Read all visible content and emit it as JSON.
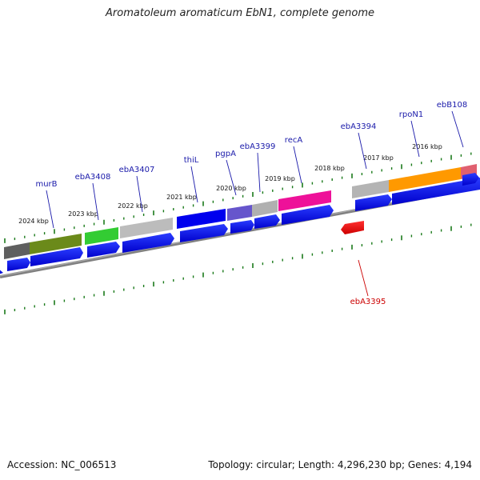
{
  "title": "Aromatoleum aromaticum EbN1, complete genome",
  "footer": {
    "accession": "Accession: NC_006513",
    "summary": "Topology: circular; Length: 4,296,230 bp; Genes: 4,194"
  },
  "kbp_labels": [
    "2024 kbp",
    "2023 kbp",
    "2022 kbp",
    "2021 kbp",
    "2020 kbp",
    "2019 kbp",
    "2018 kbp",
    "2017 kbp",
    "2016 kbp"
  ],
  "gene_labels": [
    "murB",
    "ebA3408",
    "ebA3407",
    "thiL",
    "pgpA",
    "ebA3399",
    "recA",
    "ebA3394",
    "rpoN1",
    "ebB108",
    "ebA3395"
  ],
  "colors": {
    "forward_label": "#1a1aaa",
    "reverse_label": "#cc0000",
    "tick": "#1a7a1a",
    "backbone": "#7a7a7a",
    "cds": "#0000ee"
  }
}
